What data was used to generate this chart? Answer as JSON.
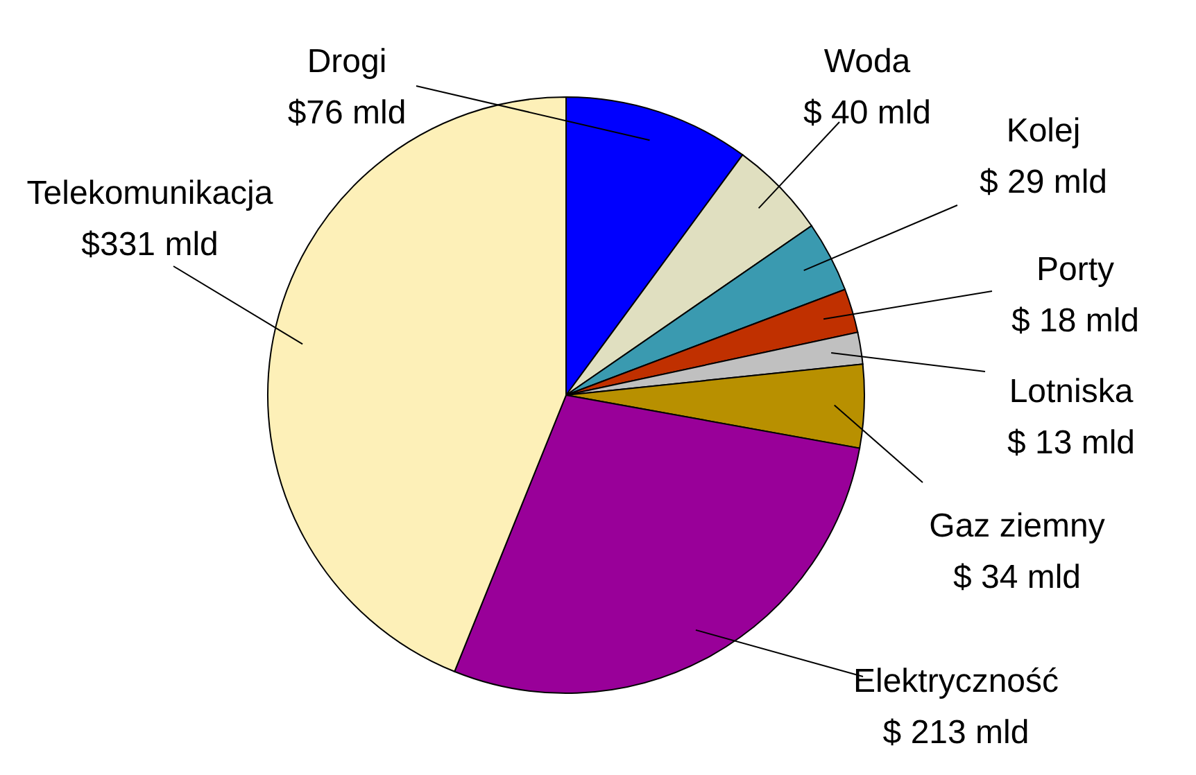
{
  "chart_data": {
    "type": "pie",
    "categories": [
      "Drogi",
      "Woda",
      "Kolej",
      "Porty",
      "Lotniska",
      "Gaz ziemny",
      "Elektryczność",
      "Telekomunikacja"
    ],
    "values": [
      76,
      40,
      29,
      18,
      13,
      34,
      213,
      331
    ],
    "value_labels": [
      "$76 mld",
      "$ 40 mld",
      "$ 29 mld",
      "$ 18 mld",
      "$ 13 mld",
      "$ 34 mld",
      "$ 213 mld",
      "$331 mld"
    ],
    "colors": [
      "#0000ff",
      "#e0dfc0",
      "#3a9ab0",
      "#c03000",
      "#c0c0c0",
      "#b89000",
      "#990099",
      "#fdf0b8"
    ]
  }
}
